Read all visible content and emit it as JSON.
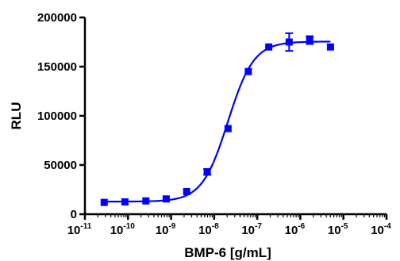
{
  "chart_data": {
    "type": "scatter",
    "title": "",
    "xlabel": "BMP-6 [g/mL]",
    "ylabel": "RLU",
    "x_scale": "log",
    "xlim": [
      1e-11,
      0.0001
    ],
    "ylim": [
      0,
      200000
    ],
    "x_tick_labels": [
      {
        "base": "10",
        "exp": "-11"
      },
      {
        "base": "10",
        "exp": "-10"
      },
      {
        "base": "10",
        "exp": "-9"
      },
      {
        "base": "10",
        "exp": "-8"
      },
      {
        "base": "10",
        "exp": "-7"
      },
      {
        "base": "10",
        "exp": "-6"
      },
      {
        "base": "10",
        "exp": "-5"
      },
      {
        "base": "10",
        "exp": "-4"
      }
    ],
    "y_tick_labels": [
      "0",
      "50000",
      "100000",
      "150000",
      "200000"
    ],
    "y_ticks": [
      0,
      50000,
      100000,
      150000,
      200000
    ],
    "grid": false,
    "legend": "none",
    "color": "#0000ff",
    "series": [
      {
        "marker": "square",
        "x": [
          2.8e-11,
          8.5e-11,
          2.6e-10,
          7.7e-10,
          2.3e-09,
          6.9e-09,
          2.1e-08,
          6.2e-08,
          1.85e-07,
          5.5e-07,
          1.65e-06,
          5e-06
        ],
        "y": [
          12000,
          12500,
          13500,
          15500,
          23000,
          43000,
          87000,
          145000,
          170000,
          175000,
          177000,
          170000
        ],
        "yerr": [
          0,
          0,
          0,
          0,
          0,
          3000,
          0,
          0,
          0,
          9000,
          4000,
          0
        ]
      }
    ],
    "fit": {
      "model": "four-parameter logistic",
      "bottom": 12800,
      "top": 175500,
      "log_ec50": -7.68,
      "hill": 1.45
    }
  }
}
